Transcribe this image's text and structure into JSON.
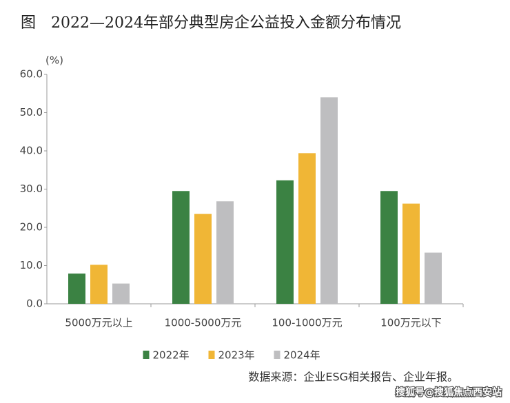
{
  "chart_data": {
    "type": "bar",
    "title": "图　2022—2024年部分典型房企公益投入金额分布情况",
    "y_label": "(%)",
    "categories": [
      "5000万元以上",
      "1000-5000万元",
      "100-1000万元",
      "100万元以下"
    ],
    "series": [
      {
        "name": "2022年",
        "color": "#3b8243",
        "values": [
          7.9,
          29.5,
          32.3,
          29.5
        ]
      },
      {
        "name": "2023年",
        "color": "#f0b636",
        "values": [
          10.2,
          23.5,
          39.4,
          26.2
        ]
      },
      {
        "name": "2024年",
        "color": "#bebec0",
        "values": [
          5.3,
          26.8,
          54.0,
          13.4
        ]
      }
    ],
    "ylim": [
      0,
      60
    ],
    "yticks": [
      {
        "value": 0,
        "label": "0.0"
      },
      {
        "value": 10,
        "label": "10.0"
      },
      {
        "value": 20,
        "label": "20.0"
      },
      {
        "value": 30,
        "label": "30.0"
      },
      {
        "value": 40,
        "label": "40.0"
      },
      {
        "value": 50,
        "label": "50.0"
      },
      {
        "value": 60,
        "label": "60.0"
      }
    ],
    "grid": false,
    "legend": "bottom",
    "source": "数据来源：企业ESG相关报告、企业年报。",
    "watermark": "搜狐号@搜狐焦点西安站"
  }
}
